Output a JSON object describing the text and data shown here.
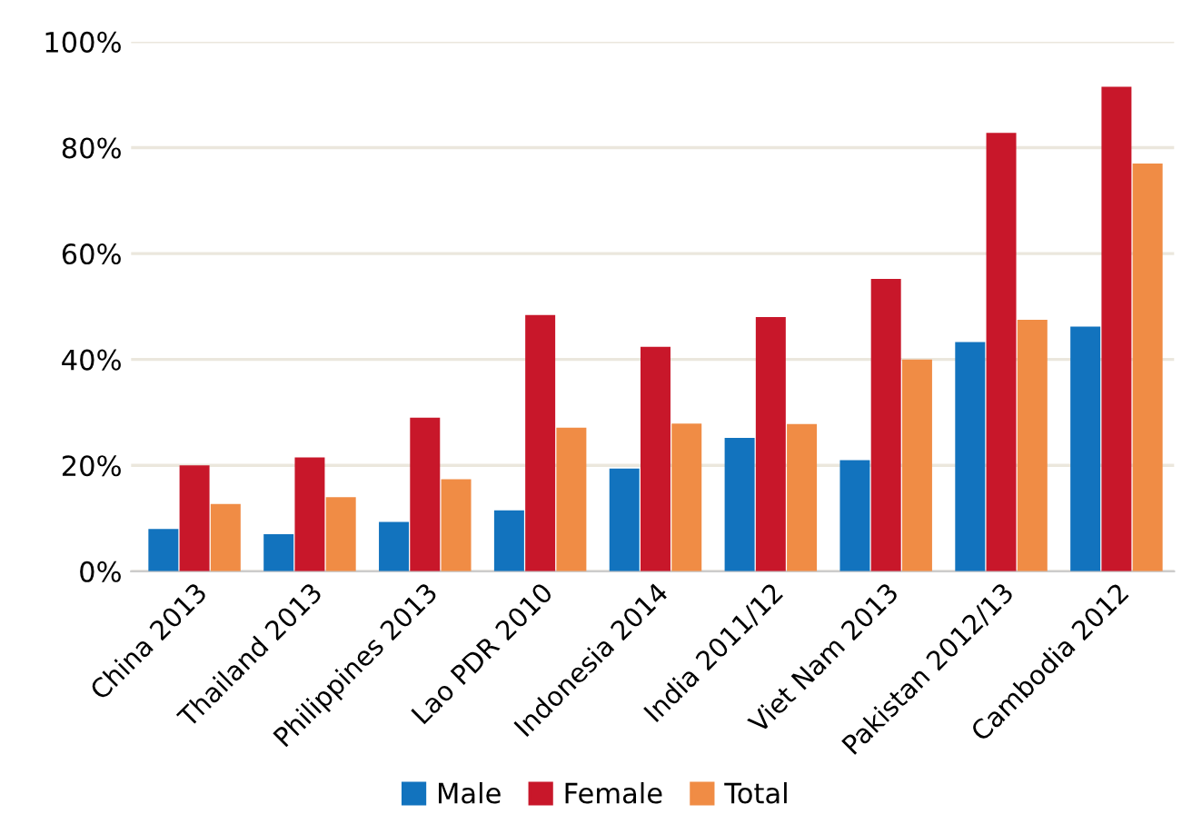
{
  "chart_data": {
    "type": "bar",
    "categories": [
      "China 2013",
      "Thailand 2013",
      "Philippines 2013",
      "Lao PDR 2010",
      "Indonesia 2014",
      "India 2011/12",
      "Viet Nam 2013",
      "Pakistan 2012/13",
      "Cambodia 2012"
    ],
    "series": [
      {
        "name": "Male",
        "color": "#1273be",
        "values": [
          8,
          7,
          9.3,
          11.5,
          19.4,
          25.2,
          21,
          43.3,
          46.2
        ]
      },
      {
        "name": "Female",
        "color": "#c8172a",
        "values": [
          20,
          21.5,
          29,
          48.4,
          42.4,
          48,
          55.2,
          82.8,
          91.5
        ]
      },
      {
        "name": "Total",
        "color": "#f08c45",
        "values": [
          12.7,
          14,
          17.4,
          27.1,
          27.9,
          27.8,
          40,
          47.5,
          77
        ]
      }
    ],
    "ylim": [
      0,
      100
    ],
    "yticks": [
      {
        "value": 0,
        "label": "0%"
      },
      {
        "value": 20,
        "label": "20%"
      },
      {
        "value": 40,
        "label": "40%"
      },
      {
        "value": 60,
        "label": "60%"
      },
      {
        "value": 80,
        "label": "80%"
      },
      {
        "value": 100,
        "label": "100%"
      }
    ],
    "grid": "y",
    "legend": "bottom"
  }
}
